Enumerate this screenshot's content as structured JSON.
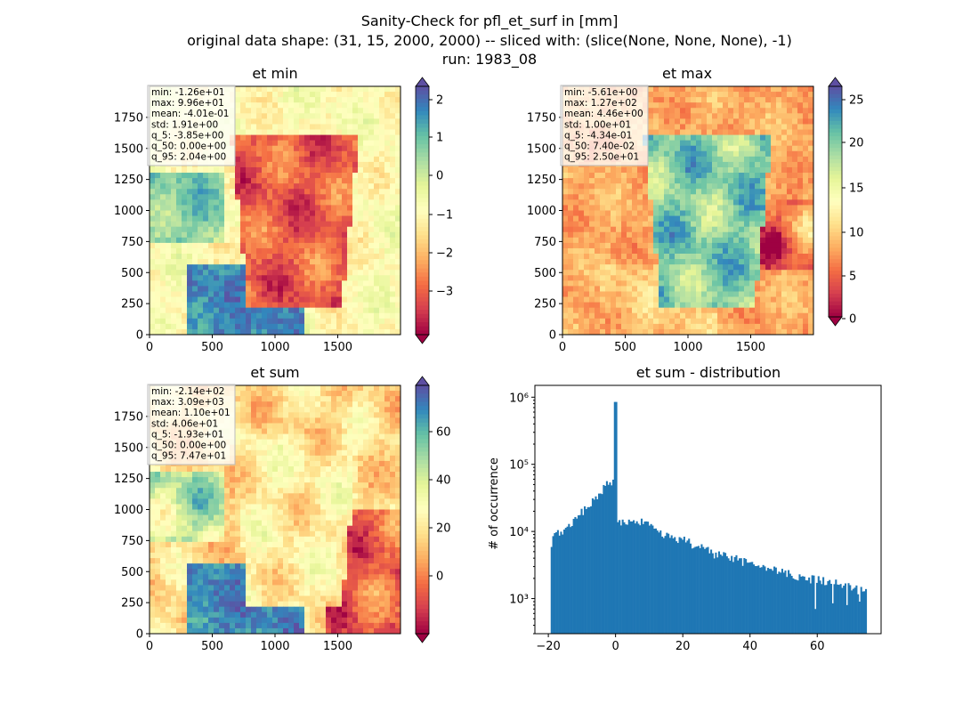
{
  "figure": {
    "title_lines": [
      "Sanity-Check for pfl_et_surf in [mm]",
      "original data shape: (31, 15, 2000, 2000) -- sliced with: (slice(None, None, None), -1)",
      "run: 1983_08"
    ]
  },
  "panels": [
    {
      "title": "et min",
      "colormap": "Spectral",
      "colorbar_ticks": [
        "2",
        "1",
        "0",
        "−1",
        "−2",
        "−3"
      ],
      "colorbar_range": [
        -3.85,
        2.04
      ],
      "x_ticks": [
        "0",
        "500",
        "1000",
        "1500"
      ],
      "y_ticks": [
        "0",
        "250",
        "500",
        "750",
        "1000",
        "1250",
        "1500",
        "1750"
      ],
      "stats": [
        "min: -1.26e+01",
        "max: 9.96e+01",
        "mean: -4.01e-01",
        "std: 1.91e+00",
        "q_5: -3.85e+00",
        "q_50: 0.00e+00",
        "q_95: 2.04e+00"
      ]
    },
    {
      "title": "et max",
      "colormap": "Spectral",
      "colorbar_ticks": [
        "25",
        "20",
        "15",
        "10",
        "5",
        "0"
      ],
      "colorbar_range": [
        -0.434,
        25.0
      ],
      "x_ticks": [
        "0",
        "500",
        "1000",
        "1500"
      ],
      "y_ticks": [
        "0",
        "250",
        "500",
        "750",
        "1000",
        "1250",
        "1500",
        "1750"
      ],
      "stats": [
        "min: -5.61e+00",
        "max: 1.27e+02",
        "mean: 4.46e+00",
        "std: 1.00e+01",
        "q_5: -4.34e-01",
        "q_50: 7.40e-02",
        "q_95: 2.50e+01"
      ]
    },
    {
      "title": "et sum",
      "colormap": "Spectral",
      "colorbar_ticks": [
        "60",
        "40",
        "20",
        "0"
      ],
      "colorbar_range": [
        -19.3,
        74.7
      ],
      "x_ticks": [
        "0",
        "500",
        "1000",
        "1500"
      ],
      "y_ticks": [
        "0",
        "250",
        "500",
        "750",
        "1000",
        "1250",
        "1500",
        "1750"
      ],
      "stats": [
        "min: -2.14e+02",
        "max: 3.09e+03",
        "mean: 1.10e+01",
        "std: 4.06e+01",
        "q_5: -1.93e+01",
        "q_50: 0.00e+00",
        "q_95: 7.47e+01"
      ]
    }
  ],
  "chart_data": {
    "type": "bar",
    "title": "et sum - distribution",
    "xlabel": "",
    "ylabel": "# of occurrence",
    "y_scale": "log",
    "ylim": [
      300,
      1500000
    ],
    "xlim": [
      -24,
      79
    ],
    "x_ticks": [
      "−20",
      "0",
      "20",
      "40",
      "60"
    ],
    "y_ticks": [
      "10³",
      "10⁴",
      "10⁵",
      "10⁶"
    ],
    "bar_color": "#1f77b4",
    "bin_range": [
      -19.3,
      74.7
    ],
    "anchors": [
      [
        -19.3,
        6500
      ],
      [
        -18,
        9000
      ],
      [
        -15,
        11000
      ],
      [
        -12,
        15000
      ],
      [
        -9,
        22000
      ],
      [
        -6,
        32000
      ],
      [
        -3,
        48000
      ],
      [
        -1,
        55000
      ],
      [
        -0.3,
        62000
      ],
      [
        0.3,
        15000
      ],
      [
        2,
        14000
      ],
      [
        5,
        14000
      ],
      [
        8,
        13500
      ],
      [
        10,
        12000
      ],
      [
        15,
        8500
      ],
      [
        20,
        7500
      ],
      [
        25,
        5800
      ],
      [
        30,
        4500
      ],
      [
        35,
        4000
      ],
      [
        40,
        3300
      ],
      [
        45,
        2800
      ],
      [
        50,
        2400
      ],
      [
        55,
        2100
      ],
      [
        60,
        1900
      ],
      [
        65,
        1700
      ],
      [
        70,
        1500
      ],
      [
        74.7,
        1200
      ]
    ],
    "spike": [
      0,
      850000
    ],
    "dips": [
      [
        59.5,
        700
      ],
      [
        64.5,
        850
      ],
      [
        69.0,
        800
      ],
      [
        72.5,
        900
      ]
    ]
  }
}
